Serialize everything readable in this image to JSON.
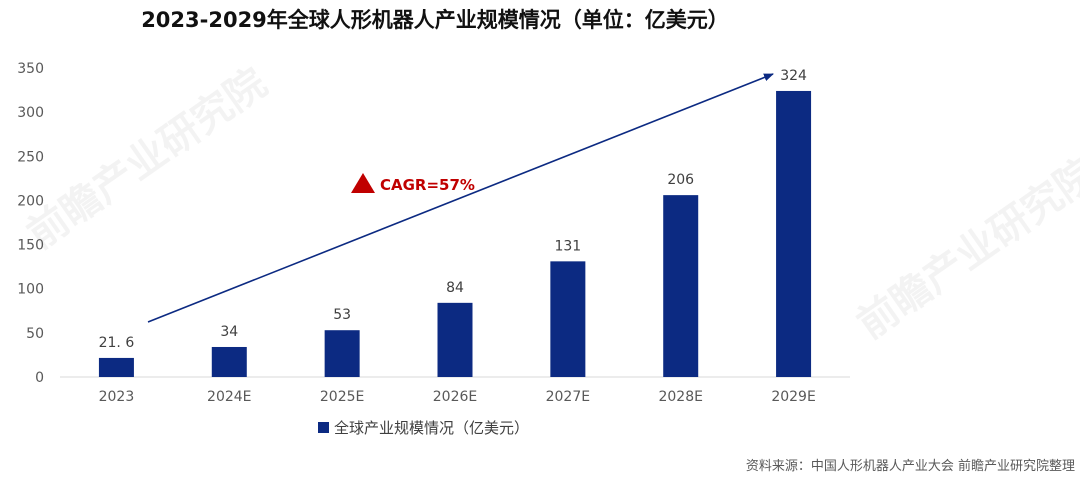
{
  "chart_data": {
    "type": "bar",
    "title": "2023-2029年全球人形机器人产业规模情况（单位：亿美元）",
    "categories": [
      "2023",
      "2024E",
      "2025E",
      "2026E",
      "2027E",
      "2028E",
      "2029E"
    ],
    "series": [
      {
        "name": "全球产业规模情况（亿美元）",
        "values": [
          21.6,
          34,
          53,
          84,
          131,
          206,
          324
        ],
        "labels": [
          "21. 6",
          "34",
          "53",
          "84",
          "131",
          "206",
          "324"
        ],
        "color": "#0c2a82"
      }
    ],
    "ylim": [
      0,
      350
    ],
    "yticks": [
      0,
      50,
      100,
      150,
      200,
      250,
      300,
      350
    ],
    "grid": false,
    "legend": "bottom-center",
    "annotation": {
      "text": "CAGR=57%",
      "color": "#c00000"
    }
  },
  "source": "资料来源：中国人形机器人产业大会 前瞻产业研究院整理",
  "watermark": "前瞻产业研究院"
}
